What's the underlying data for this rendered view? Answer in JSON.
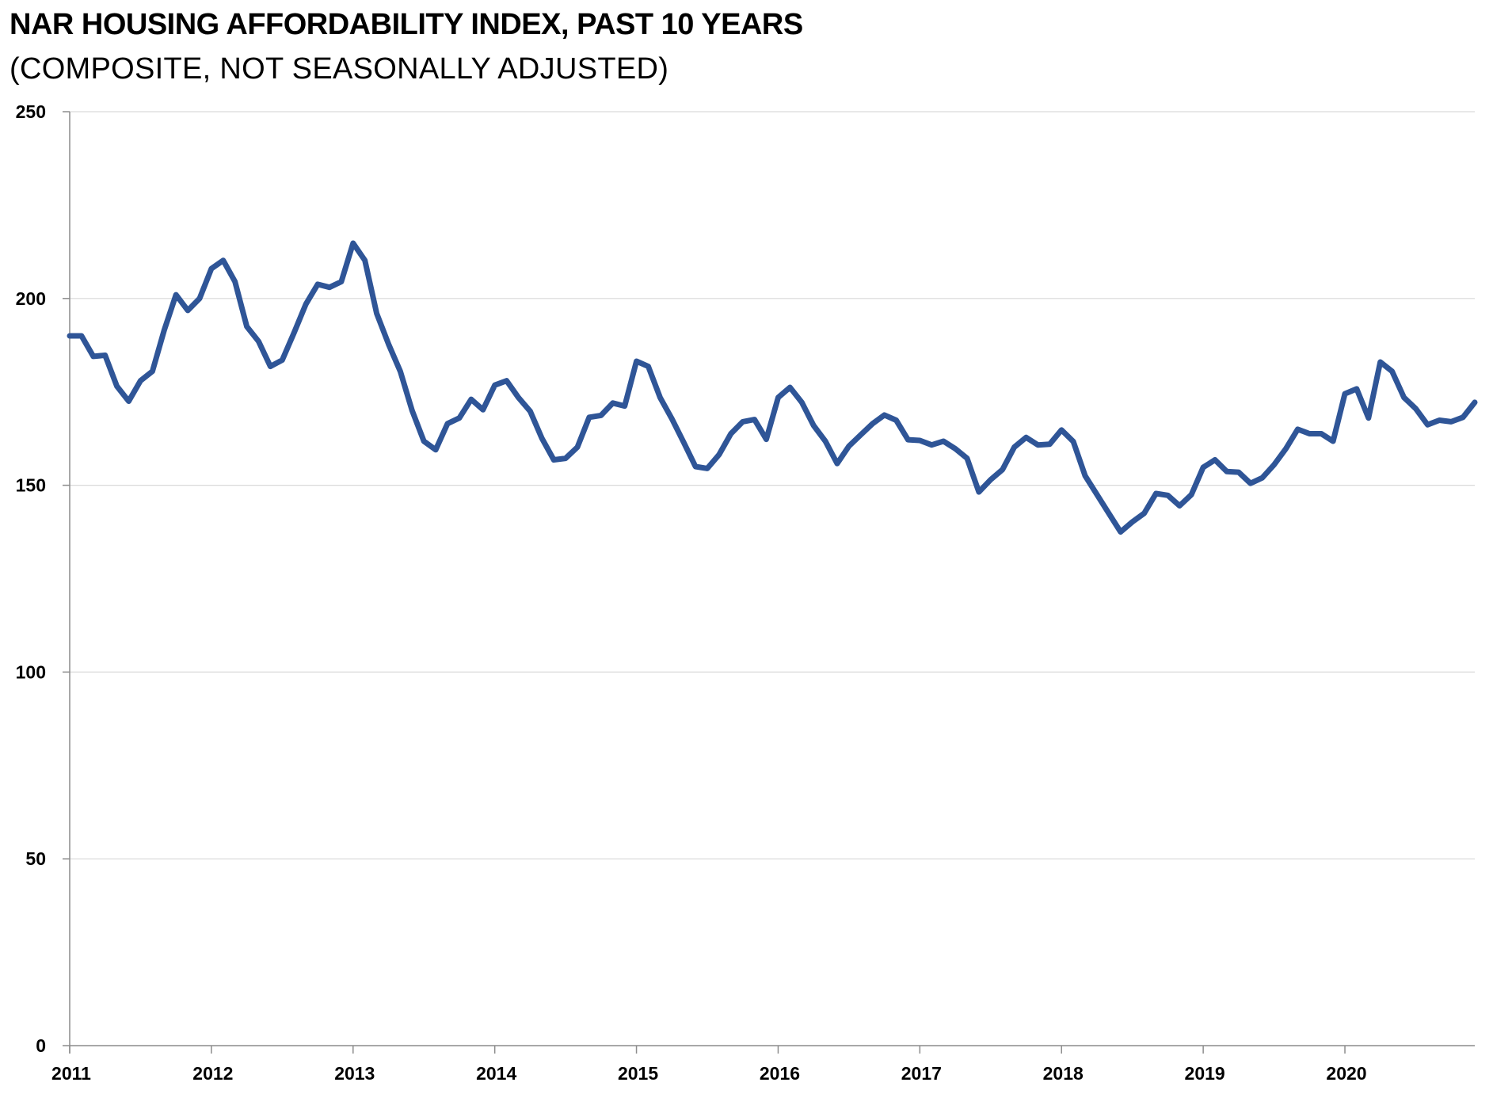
{
  "chart_data": {
    "type": "line",
    "title": "NAR HOUSING AFFORDABILITY INDEX, PAST 10 YEARS",
    "subtitle": "(COMPOSITE, NOT SEASONALLY ADJUSTED)",
    "xlabel": "",
    "ylabel": "",
    "ylim": [
      0,
      250
    ],
    "yticks": [
      "0",
      "50",
      "100",
      "150",
      "200",
      "250"
    ],
    "xlim": [
      "2011-01",
      "2020-12"
    ],
    "xticks": [
      "2011",
      "2012",
      "2013",
      "2014",
      "2015",
      "2016",
      "2017",
      "2018",
      "2019",
      "2020"
    ],
    "grid": true,
    "legend": "none",
    "series_color": "#2f5597",
    "series": [
      {
        "x": [
          "2011-01",
          "2011-02",
          "2011-03",
          "2011-04",
          "2011-05",
          "2011-06",
          "2011-07",
          "2011-08",
          "2011-09",
          "2011-10",
          "2011-11",
          "2011-12",
          "2012-01",
          "2012-02",
          "2012-03",
          "2012-04",
          "2012-05",
          "2012-06",
          "2012-07",
          "2012-08",
          "2012-09",
          "2012-10",
          "2012-11",
          "2012-12",
          "2013-01",
          "2013-02",
          "2013-03",
          "2013-04",
          "2013-05",
          "2013-06",
          "2013-07",
          "2013-08",
          "2013-09",
          "2013-10",
          "2013-11",
          "2013-12",
          "2014-01",
          "2014-02",
          "2014-03",
          "2014-04",
          "2014-05",
          "2014-06",
          "2014-07",
          "2014-08",
          "2014-09",
          "2014-10",
          "2014-11",
          "2014-12",
          "2015-01",
          "2015-02",
          "2015-03",
          "2015-04",
          "2015-05",
          "2015-06",
          "2015-07",
          "2015-08",
          "2015-09",
          "2015-10",
          "2015-11",
          "2015-12",
          "2016-01",
          "2016-02",
          "2016-03",
          "2016-04",
          "2016-05",
          "2016-06",
          "2016-07",
          "2016-08",
          "2016-09",
          "2016-10",
          "2016-11",
          "2016-12",
          "2017-01",
          "2017-02",
          "2017-03",
          "2017-04",
          "2017-05",
          "2017-06",
          "2017-07",
          "2017-08",
          "2017-09",
          "2017-10",
          "2017-11",
          "2017-12",
          "2018-01",
          "2018-02",
          "2018-03",
          "2018-04",
          "2018-05",
          "2018-06",
          "2018-07",
          "2018-08",
          "2018-09",
          "2018-10",
          "2018-11",
          "2018-12",
          "2019-01",
          "2019-02",
          "2019-03",
          "2019-04",
          "2019-05",
          "2019-06",
          "2019-07",
          "2019-08",
          "2019-09",
          "2019-10",
          "2019-11",
          "2019-12",
          "2020-01",
          "2020-02",
          "2020-03",
          "2020-04",
          "2020-05",
          "2020-06",
          "2020-07",
          "2020-08",
          "2020-09",
          "2020-10",
          "2020-11",
          "2020-12"
        ],
        "values": [
          190,
          190,
          184.5,
          184.8,
          176.5,
          172.5,
          178,
          180.5,
          191.5,
          201,
          196.8,
          200,
          208,
          210.2,
          204.5,
          192.5,
          188.5,
          181.8,
          183.5,
          190.8,
          198.5,
          203.8,
          203,
          204.5,
          214.8,
          210.2,
          196,
          187.8,
          180.5,
          170,
          161.8,
          159.5,
          166.5,
          168,
          173,
          170.2,
          176.8,
          178,
          173.5,
          169.8,
          162.5,
          156.8,
          157.2,
          160.2,
          168.2,
          168.7,
          172,
          171.2,
          183.2,
          181.8,
          173.5,
          167.8,
          161.5,
          155,
          154.5,
          158.2,
          163.8,
          167,
          167.6,
          162.3,
          173.5,
          176.2,
          172.2,
          166,
          161.8,
          155.8,
          160.5,
          163.5,
          166.5,
          168.8,
          167.4,
          162.2,
          162,
          160.8,
          161.8,
          159.8,
          157.2,
          148.2,
          151.5,
          154.2,
          160.2,
          162.8,
          160.8,
          161,
          164.8,
          161.7,
          152.5,
          147.5,
          142.5,
          137.5,
          140.2,
          142.5,
          147.8,
          147.3,
          144.5,
          147.5,
          154.8,
          156.8,
          153.7,
          153.5,
          150.5,
          152,
          155.5,
          159.8,
          165,
          163.8,
          163.8,
          161.8,
          174.5,
          175.8,
          168,
          183,
          180.5,
          173.5,
          170.5,
          166.2,
          167.4,
          167,
          168.2,
          172.2
        ]
      }
    ]
  }
}
